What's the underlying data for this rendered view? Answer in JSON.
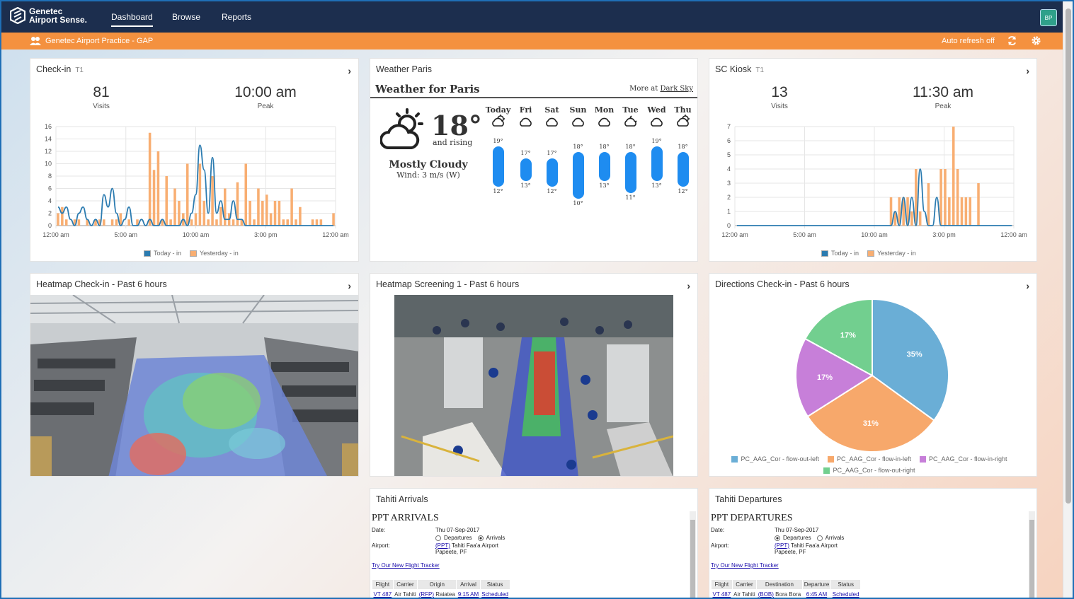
{
  "app": {
    "logo_line1": "Genetec",
    "logo_line2": "Airport Sense."
  },
  "nav": {
    "items": [
      "Dashboard",
      "Browse",
      "Reports"
    ],
    "active": "Dashboard",
    "avatar": "BP"
  },
  "subbar": {
    "site": "Genetec Airport Practice - GAP",
    "refresh_label": "Auto refresh off"
  },
  "colors": {
    "nav_bg": "#1c2e4e",
    "accent": "#f4913f",
    "today": "#2b7bb0",
    "yesterday": "#f8ae72"
  },
  "checkin": {
    "title": "Check-in",
    "terminal": "T1",
    "visits_value": "81",
    "visits_label": "Visits",
    "peak_value": "10:00 am",
    "peak_label": "Peak",
    "legend_today": "Today - in",
    "legend_yesterday": "Yesterday - in"
  },
  "kiosk": {
    "title": "SC Kiosk",
    "terminal": "T1",
    "visits_value": "13",
    "visits_label": "Visits",
    "peak_value": "11:30 am",
    "peak_label": "Peak",
    "legend_today": "Today - in",
    "legend_yesterday": "Yesterday - in"
  },
  "chart_data": [
    {
      "type": "bar",
      "name": "checkin-chart",
      "x_ticks": [
        "12:00 am",
        "5:00 am",
        "10:00 am",
        "3:00 pm",
        "12:00 am"
      ],
      "y_ticks": [
        0,
        2,
        4,
        6,
        8,
        10,
        12,
        14,
        16
      ],
      "ylim": [
        0,
        16
      ],
      "series": [
        {
          "name": "Yesterday - in",
          "kind": "bar",
          "values": [
            2,
            3,
            1,
            0,
            1,
            1,
            0,
            1,
            0,
            1,
            1,
            1,
            0,
            1,
            1,
            2,
            0,
            1,
            0,
            1,
            0,
            0,
            15,
            9,
            12,
            1,
            8,
            1,
            6,
            4,
            2,
            10,
            1,
            2,
            10,
            4,
            1,
            8,
            1,
            3,
            6,
            2,
            1,
            7,
            1,
            10,
            4,
            1,
            6,
            4,
            5,
            2,
            4,
            4,
            1,
            1,
            6,
            1,
            3,
            0,
            0,
            1,
            1,
            1,
            0,
            0,
            2
          ]
        },
        {
          "name": "Today - in",
          "kind": "line",
          "values": [
            3,
            2,
            3,
            1,
            0,
            2,
            3,
            1,
            0,
            1,
            0,
            5,
            3,
            6,
            2,
            0,
            1,
            3,
            0,
            0,
            1,
            0,
            1,
            0,
            0,
            1,
            0,
            0,
            0,
            0,
            1,
            0,
            2,
            5,
            13,
            9,
            2,
            11,
            2,
            4,
            1,
            1,
            4,
            1,
            1,
            0,
            0,
            0,
            0,
            0,
            0,
            0,
            0,
            0,
            0,
            0,
            0,
            0,
            0,
            0,
            0,
            0,
            0,
            0,
            0,
            0,
            0
          ]
        }
      ]
    },
    {
      "type": "bar",
      "name": "kiosk-chart",
      "x_ticks": [
        "12:00 am",
        "5:00 am",
        "10:00 am",
        "3:00 pm",
        "12:00 am"
      ],
      "y_ticks": [
        0,
        1,
        2,
        3,
        4,
        5,
        6,
        7
      ],
      "ylim": [
        0,
        7
      ],
      "series": [
        {
          "name": "Yesterday - in",
          "kind": "bar",
          "values": [
            0,
            0,
            0,
            0,
            0,
            0,
            0,
            0,
            0,
            0,
            0,
            0,
            0,
            0,
            0,
            0,
            0,
            0,
            0,
            0,
            0,
            0,
            0,
            0,
            0,
            0,
            0,
            0,
            0,
            0,
            0,
            0,
            0,
            0,
            0,
            0,
            0,
            2,
            1,
            2,
            2,
            2,
            1,
            4,
            1,
            0,
            3,
            0,
            0,
            4,
            4,
            2,
            7,
            4,
            2,
            2,
            2,
            0,
            3,
            0,
            0,
            0,
            0,
            0,
            0,
            0,
            0
          ]
        },
        {
          "name": "Today - in",
          "kind": "line",
          "values": [
            0,
            0,
            0,
            0,
            0,
            0,
            0,
            0,
            0,
            0,
            0,
            0,
            0,
            0,
            0,
            0,
            0,
            0,
            0,
            0,
            0,
            0,
            0,
            0,
            0,
            0,
            0,
            0,
            0,
            0,
            0,
            0,
            0,
            0,
            0,
            0,
            0,
            0,
            1,
            0,
            2,
            0,
            2,
            0,
            4,
            1,
            0,
            0,
            2,
            0,
            0,
            0,
            0,
            0,
            0,
            0,
            0,
            0,
            0,
            0,
            0,
            0,
            0,
            0,
            0,
            0,
            0
          ]
        }
      ]
    },
    {
      "type": "pie",
      "name": "directions-chart",
      "slices": [
        {
          "label": "PC_AAG_Cor - flow-out-left",
          "value": 35,
          "text": "35%",
          "color": "#6aaed6"
        },
        {
          "label": "PC_AAG_Cor - flow-in-left",
          "value": 31,
          "text": "31%",
          "color": "#f7a86b"
        },
        {
          "label": "PC_AAG_Cor - flow-in-right",
          "value": 17,
          "text": "17%",
          "color": "#c77fd9"
        },
        {
          "label": "PC_AAG_Cor - flow-out-right",
          "value": 17,
          "text": "17%",
          "color": "#72cf8f"
        }
      ]
    }
  ],
  "weather": {
    "panel_title": "Weather Paris",
    "header": "Weather for Paris",
    "more_prefix": "More at",
    "more_link": "Dark Sky",
    "temp": "18°",
    "trend": "and rising",
    "summary": "Mostly Cloudy",
    "wind": "Wind: 3 m/s (W)",
    "days": [
      {
        "d": "Today",
        "hi": "19°",
        "lo": "12°",
        "icon": "partly-cloudy-icon",
        "hi_val": 19,
        "lo_val": 12
      },
      {
        "d": "Fri",
        "hi": "17°",
        "lo": "13°",
        "icon": "cloudy-icon",
        "hi_val": 17,
        "lo_val": 13
      },
      {
        "d": "Sat",
        "hi": "17°",
        "lo": "12°",
        "icon": "cloudy-icon",
        "hi_val": 17,
        "lo_val": 12
      },
      {
        "d": "Sun",
        "hi": "18°",
        "lo": "10°",
        "icon": "cloudy-icon",
        "hi_val": 18,
        "lo_val": 10
      },
      {
        "d": "Mon",
        "hi": "18°",
        "lo": "13°",
        "icon": "cloudy-icon",
        "hi_val": 18,
        "lo_val": 13
      },
      {
        "d": "Tue",
        "hi": "18°",
        "lo": "11°",
        "icon": "night-cloudy-icon",
        "hi_val": 18,
        "lo_val": 11
      },
      {
        "d": "Wed",
        "hi": "19°",
        "lo": "13°",
        "icon": "cloudy-icon",
        "hi_val": 19,
        "lo_val": 13
      },
      {
        "d": "Thu",
        "hi": "18°",
        "lo": "12°",
        "icon": "partly-cloudy-icon",
        "hi_val": 18,
        "lo_val": 12
      }
    ]
  },
  "heatmap_checkin": {
    "title": "Heatmap Check-in - Past 6 hours"
  },
  "heatmap_screening": {
    "title": "Heatmap Screening 1 - Past 6 hours"
  },
  "directions": {
    "title": "Directions Check-in - Past 6 hours"
  },
  "arrivals": {
    "panel_title": "Tahiti Arrivals",
    "heading": "PPT ARRIVALS",
    "date_label": "Date:",
    "date": "Thu 07-Sep-2017",
    "opt_departures": "Departures",
    "opt_arrivals": "Arrivals",
    "airport_label": "Airport:",
    "airport_code": "(PPT)",
    "airport_name": "Tahiti Faa'a Airport",
    "city": "Papeete, PF",
    "tracker": "Try Our New Flight Tracker",
    "cols": [
      "Flight",
      "Carrier",
      "Origin",
      "Arrival",
      "Status"
    ],
    "row": {
      "flight": "VT 487",
      "carrier": "Air Tahiti",
      "place_code": "(RFP)",
      "place": "Raiatea",
      "time": "9:15 AM",
      "status": "Scheduled"
    }
  },
  "departures": {
    "panel_title": "Tahiti Departures",
    "heading": "PPT DEPARTURES",
    "date_label": "Date:",
    "date": "Thu 07-Sep-2017",
    "opt_departures": "Departures",
    "opt_arrivals": "Arrivals",
    "airport_label": "Airport:",
    "airport_code": "(PPT)",
    "airport_name": "Tahiti Faa'a Airport",
    "city": "Papeete, PF",
    "tracker": "Try Our New Flight Tracker",
    "cols": [
      "Flight",
      "Carrier",
      "Destination",
      "Departure",
      "Status"
    ],
    "row": {
      "flight": "VT 487",
      "carrier": "Air Tahiti",
      "place_code": "(BOB)",
      "place": "Bora Bora",
      "time": "6:45 AM",
      "status": "Scheduled"
    }
  }
}
